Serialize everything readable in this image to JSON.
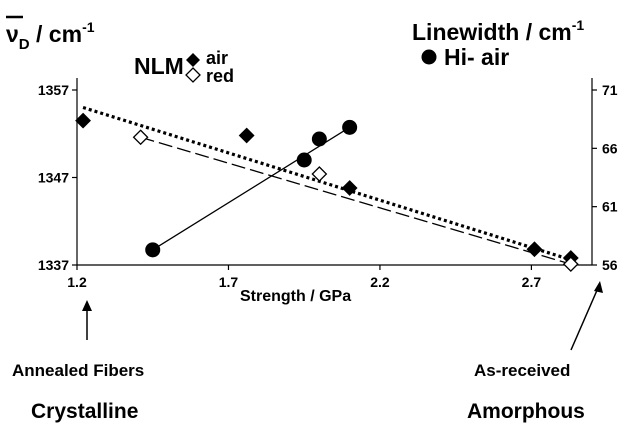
{
  "chart_data": {
    "type": "scatter",
    "xlabel": "Strength / GPa",
    "y_left_label": "ν",
    "y_left_label_sub": "D",
    "y_left_label_unit": " / cm",
    "y_left_label_sup": "-1",
    "y_right_label": "Linewidth / cm",
    "y_right_label_sup": "-1",
    "xlim": [
      1.2,
      2.9
    ],
    "ylim_left": [
      1337,
      1357
    ],
    "ylim_right": [
      56,
      71
    ],
    "x_ticks": [
      1.2,
      1.7,
      2.2,
      2.7
    ],
    "x_tick_labels": [
      "1.2",
      "1.7",
      "2.2",
      "2.7"
    ],
    "y_left_ticks": [
      1337,
      1347,
      1357
    ],
    "y_left_tick_labels": [
      "1337",
      "1347",
      "1357"
    ],
    "y_right_ticks": [
      56,
      61,
      66,
      71
    ],
    "y_right_tick_labels": [
      "56",
      "61",
      "66",
      "71"
    ],
    "legend": {
      "group_label": "NLM",
      "entries": [
        {
          "label": "air",
          "marker": "filled-diamond"
        },
        {
          "label": "red",
          "marker": "open-diamond"
        },
        {
          "label": "Hi- air",
          "marker": "filled-circle"
        }
      ]
    },
    "series": [
      {
        "name": "air",
        "axis": "left",
        "marker": "filled-diamond",
        "points": [
          [
            1.22,
            1353.5
          ],
          [
            1.76,
            1351.8
          ],
          [
            2.1,
            1345.8
          ],
          [
            2.71,
            1338.8
          ],
          [
            2.83,
            1337.8
          ]
        ],
        "trend": {
          "style": "dotted",
          "from": [
            1.22,
            1355.0
          ],
          "to": [
            2.83,
            1337.6
          ]
        }
      },
      {
        "name": "red",
        "axis": "left",
        "marker": "open-diamond",
        "points": [
          [
            1.41,
            1351.6
          ],
          [
            2.0,
            1347.4
          ],
          [
            2.83,
            1337.1
          ]
        ],
        "trend": {
          "style": "long-dash",
          "from": [
            1.41,
            1351.6
          ],
          "to": [
            2.83,
            1337.1
          ]
        }
      },
      {
        "name": "Hi- air",
        "axis": "right",
        "marker": "filled-circle",
        "points": [
          [
            1.45,
            57.3
          ],
          [
            1.95,
            65.0
          ],
          [
            2.0,
            66.8
          ],
          [
            2.1,
            67.8
          ]
        ],
        "trend": {
          "style": "solid",
          "from": [
            1.45,
            57.3
          ],
          "to": [
            2.1,
            67.8
          ]
        }
      }
    ],
    "annotations": [
      {
        "text": "Annealed Fibers",
        "arrow_to_x": 1.2
      },
      {
        "text": "Crystalline"
      },
      {
        "text": "As-received",
        "arrow_to_x": 2.9
      },
      {
        "text": "Amorphous"
      }
    ],
    "grid": false,
    "legend_placement": "top-left"
  },
  "colors": {
    "ink": "#000000",
    "background": "#ffffff"
  }
}
